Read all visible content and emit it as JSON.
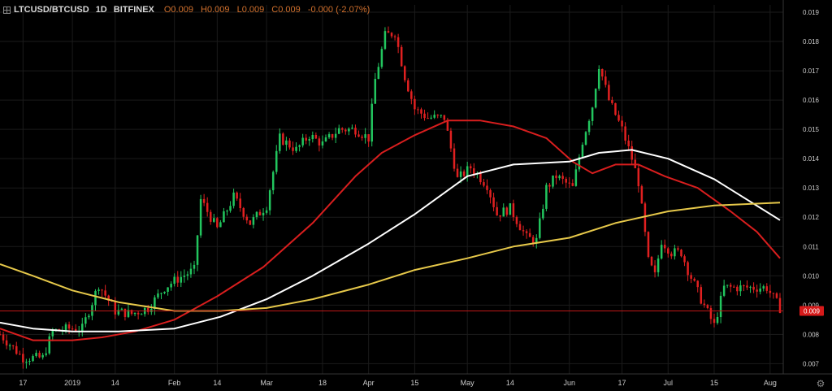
{
  "header": {
    "symbol": "LTCUSD/BTCUSD",
    "interval": "1D",
    "exchange": "BITFINEX",
    "open": "O0.009",
    "high": "H0.009",
    "low": "L0.009",
    "close": "C0.009",
    "change": "-0.000 (-2.07%)"
  },
  "price_label": "0.009",
  "colors": {
    "background": "#000000",
    "grid": "#1b1b1b",
    "up": "#22c55e",
    "down": "#e02020",
    "ma_fast": "#d81e1e",
    "ma_mid": "#ffffff",
    "ma_slow": "#e6c84a",
    "price_line": "#c01818",
    "axis_text": "#cccccc"
  },
  "chart_data": {
    "type": "line",
    "subtype": "candlestick",
    "x_start": "2018-12-10",
    "x_end": "2019-08-04",
    "ylim": [
      0.00665,
      0.01925
    ],
    "y_ticks": [
      "0.007",
      "0.008",
      "0.009",
      "0.010",
      "0.011",
      "0.012",
      "0.013",
      "0.014",
      "0.015",
      "0.016",
      "0.017",
      "0.018",
      "0.019"
    ],
    "x_ticks": [
      {
        "label": "17",
        "date": "2018-12-17"
      },
      {
        "label": "2019",
        "date": "2019-01-01"
      },
      {
        "label": "14",
        "date": "2019-01-14"
      },
      {
        "label": "Feb",
        "date": "2019-02-01"
      },
      {
        "label": "14",
        "date": "2019-02-14"
      },
      {
        "label": "Mar",
        "date": "2019-03-01"
      },
      {
        "label": "18",
        "date": "2019-03-18"
      },
      {
        "label": "Apr",
        "date": "2019-04-01"
      },
      {
        "label": "15",
        "date": "2019-04-15"
      },
      {
        "label": "May",
        "date": "2019-05-01"
      },
      {
        "label": "14",
        "date": "2019-05-14"
      },
      {
        "label": "Jun",
        "date": "2019-06-01"
      },
      {
        "label": "17",
        "date": "2019-06-17"
      },
      {
        "label": "Jul",
        "date": "2019-07-01"
      },
      {
        "label": "15",
        "date": "2019-07-15"
      },
      {
        "label": "Aug",
        "date": "2019-08-01"
      }
    ],
    "price_anchors": [
      [
        "2018-12-10",
        0.008
      ],
      [
        "2018-12-17",
        0.0072
      ],
      [
        "2018-12-23",
        0.0072
      ],
      [
        "2018-12-26",
        0.0081
      ],
      [
        "2018-12-31",
        0.0082
      ],
      [
        "2019-01-04",
        0.0082
      ],
      [
        "2019-01-09",
        0.0097
      ],
      [
        "2019-01-14",
        0.0088
      ],
      [
        "2019-01-19",
        0.0087
      ],
      [
        "2019-01-24",
        0.0089
      ],
      [
        "2019-01-29",
        0.0096
      ],
      [
        "2019-02-02",
        0.0099
      ],
      [
        "2019-02-07",
        0.0102
      ],
      [
        "2019-02-09",
        0.0126
      ],
      [
        "2019-02-14",
        0.0116
      ],
      [
        "2019-02-19",
        0.0127
      ],
      [
        "2019-02-24",
        0.0118
      ],
      [
        "2019-03-01",
        0.0124
      ],
      [
        "2019-03-05",
        0.0147
      ],
      [
        "2019-03-10",
        0.0143
      ],
      [
        "2019-03-14",
        0.0148
      ],
      [
        "2019-03-18",
        0.0145
      ],
      [
        "2019-03-23",
        0.015
      ],
      [
        "2019-03-28",
        0.015
      ],
      [
        "2019-04-01",
        0.0147
      ],
      [
        "2019-04-03",
        0.0167
      ],
      [
        "2019-04-06",
        0.0182
      ],
      [
        "2019-04-09",
        0.0183
      ],
      [
        "2019-04-12",
        0.0168
      ],
      [
        "2019-04-15",
        0.0157
      ],
      [
        "2019-04-19",
        0.0154
      ],
      [
        "2019-04-24",
        0.0154
      ],
      [
        "2019-04-28",
        0.0133
      ],
      [
        "2019-05-02",
        0.0137
      ],
      [
        "2019-05-07",
        0.0131
      ],
      [
        "2019-05-10",
        0.0121
      ],
      [
        "2019-05-14",
        0.0123
      ],
      [
        "2019-05-19",
        0.0113
      ],
      [
        "2019-05-22",
        0.0112
      ],
      [
        "2019-05-25",
        0.013
      ],
      [
        "2019-05-28",
        0.0134
      ],
      [
        "2019-06-02",
        0.013
      ],
      [
        "2019-06-05",
        0.0146
      ],
      [
        "2019-06-08",
        0.0158
      ],
      [
        "2019-06-10",
        0.0172
      ],
      [
        "2019-06-13",
        0.016
      ],
      [
        "2019-06-17",
        0.015
      ],
      [
        "2019-06-20",
        0.014
      ],
      [
        "2019-06-22",
        0.0132
      ],
      [
        "2019-06-25",
        0.0105
      ],
      [
        "2019-06-27",
        0.01
      ],
      [
        "2019-06-29",
        0.0112
      ],
      [
        "2019-07-02",
        0.0108
      ],
      [
        "2019-07-05",
        0.0108
      ],
      [
        "2019-07-07",
        0.0102
      ],
      [
        "2019-07-11",
        0.0092
      ],
      [
        "2019-07-15",
        0.0083
      ],
      [
        "2019-07-18",
        0.0096
      ],
      [
        "2019-07-22",
        0.0096
      ],
      [
        "2019-07-26",
        0.0096
      ],
      [
        "2019-07-31",
        0.0096
      ],
      [
        "2019-08-04",
        0.0089
      ]
    ],
    "series": [
      {
        "color": "#d81e1e",
        "points": [
          [
            "2018-12-10",
            0.0082
          ],
          [
            "2018-12-20",
            0.0078
          ],
          [
            "2019-01-01",
            0.0078
          ],
          [
            "2019-01-10",
            0.0079
          ],
          [
            "2019-01-20",
            0.0081
          ],
          [
            "2019-02-01",
            0.0085
          ],
          [
            "2019-02-14",
            0.0093
          ],
          [
            "2019-02-28",
            0.0103
          ],
          [
            "2019-03-15",
            0.0118
          ],
          [
            "2019-03-28",
            0.0134
          ],
          [
            "2019-04-05",
            0.0142
          ],
          [
            "2019-04-15",
            0.0148
          ],
          [
            "2019-04-25",
            0.0153
          ],
          [
            "2019-05-05",
            0.0153
          ],
          [
            "2019-05-15",
            0.0151
          ],
          [
            "2019-05-25",
            0.0147
          ],
          [
            "2019-06-02",
            0.0139
          ],
          [
            "2019-06-08",
            0.0135
          ],
          [
            "2019-06-15",
            0.0138
          ],
          [
            "2019-06-22",
            0.0138
          ],
          [
            "2019-06-30",
            0.0134
          ],
          [
            "2019-07-10",
            0.013
          ],
          [
            "2019-07-20",
            0.0122
          ],
          [
            "2019-07-28",
            0.0115
          ],
          [
            "2019-08-04",
            0.0106
          ]
        ]
      },
      {
        "color": "#ffffff",
        "points": [
          [
            "2018-12-10",
            0.0084
          ],
          [
            "2018-12-20",
            0.0082
          ],
          [
            "2019-01-01",
            0.0081
          ],
          [
            "2019-01-15",
            0.0081
          ],
          [
            "2019-02-01",
            0.0082
          ],
          [
            "2019-02-15",
            0.0086
          ],
          [
            "2019-03-01",
            0.0092
          ],
          [
            "2019-03-15",
            0.01
          ],
          [
            "2019-04-01",
            0.0111
          ],
          [
            "2019-04-15",
            0.0121
          ],
          [
            "2019-05-01",
            0.0134
          ],
          [
            "2019-05-15",
            0.0138
          ],
          [
            "2019-06-01",
            0.0139
          ],
          [
            "2019-06-10",
            0.0142
          ],
          [
            "2019-06-20",
            0.0143
          ],
          [
            "2019-07-01",
            0.014
          ],
          [
            "2019-07-15",
            0.0133
          ],
          [
            "2019-08-04",
            0.0119
          ]
        ]
      },
      {
        "color": "#e6c84a",
        "points": [
          [
            "2018-12-10",
            0.0104
          ],
          [
            "2018-12-20",
            0.01
          ],
          [
            "2019-01-01",
            0.0095
          ],
          [
            "2019-01-15",
            0.0091
          ],
          [
            "2019-02-01",
            0.0088
          ],
          [
            "2019-02-15",
            0.0088
          ],
          [
            "2019-03-01",
            0.0089
          ],
          [
            "2019-03-15",
            0.0092
          ],
          [
            "2019-04-01",
            0.0097
          ],
          [
            "2019-04-15",
            0.0102
          ],
          [
            "2019-05-01",
            0.0106
          ],
          [
            "2019-05-15",
            0.011
          ],
          [
            "2019-06-01",
            0.0113
          ],
          [
            "2019-06-15",
            0.0118
          ],
          [
            "2019-07-01",
            0.0122
          ],
          [
            "2019-07-15",
            0.0124
          ],
          [
            "2019-08-04",
            0.0125
          ]
        ]
      }
    ],
    "current_price": 0.0088
  }
}
